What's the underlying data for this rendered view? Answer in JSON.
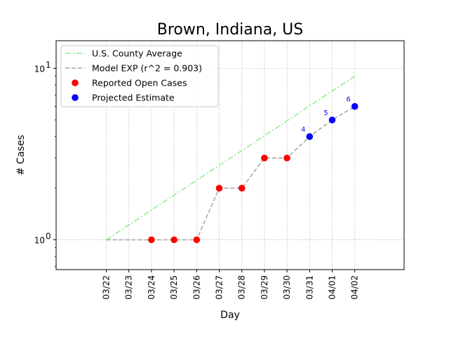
{
  "chart_data": {
    "type": "line",
    "title": "Brown, Indiana, US",
    "xlabel": "Day",
    "ylabel": "# Cases",
    "yscale": "log",
    "ylim": [
      0.67,
      14.5
    ],
    "y_ticks": [
      {
        "value": 1,
        "label": "10^0"
      },
      {
        "value": 10,
        "label": "10^1"
      }
    ],
    "grid": true,
    "legend_position": "top-left",
    "categories": [
      "03/22",
      "03/23",
      "03/24",
      "03/25",
      "03/26",
      "03/27",
      "03/28",
      "03/29",
      "03/30",
      "03/31",
      "04/01",
      "04/02"
    ],
    "series": [
      {
        "name": "U.S. County Average",
        "style": "dashdot",
        "color": "#90ee90",
        "points": [
          {
            "x": "03/22",
            "y": 1.0
          },
          {
            "x": "04/02",
            "y": 9.0
          }
        ]
      },
      {
        "name": "Model EXP (r^2 = 0.903)",
        "style": "dashed",
        "color": "#a9a9a9",
        "points": [
          {
            "x": "03/22",
            "y": 1
          },
          {
            "x": "03/23",
            "y": 1
          },
          {
            "x": "03/24",
            "y": 1
          },
          {
            "x": "03/25",
            "y": 1
          },
          {
            "x": "03/26",
            "y": 1
          },
          {
            "x": "03/27",
            "y": 2
          },
          {
            "x": "03/28",
            "y": 2
          },
          {
            "x": "03/29",
            "y": 3
          },
          {
            "x": "03/30",
            "y": 3
          },
          {
            "x": "03/31",
            "y": 4
          },
          {
            "x": "04/01",
            "y": 5
          },
          {
            "x": "04/02",
            "y": 6
          }
        ]
      },
      {
        "name": "Reported Open Cases",
        "style": "marker",
        "color": "#ff0000",
        "points": [
          {
            "x": "03/24",
            "y": 1
          },
          {
            "x": "03/25",
            "y": 1
          },
          {
            "x": "03/26",
            "y": 1
          },
          {
            "x": "03/27",
            "y": 2
          },
          {
            "x": "03/28",
            "y": 2
          },
          {
            "x": "03/29",
            "y": 3
          },
          {
            "x": "03/30",
            "y": 3
          }
        ]
      },
      {
        "name": "Projected Estimate",
        "style": "marker",
        "color": "#0000ff",
        "points": [
          {
            "x": "03/31",
            "y": 4,
            "label": "4"
          },
          {
            "x": "04/01",
            "y": 5,
            "label": "5"
          },
          {
            "x": "04/02",
            "y": 6,
            "label": "6"
          }
        ]
      }
    ]
  }
}
